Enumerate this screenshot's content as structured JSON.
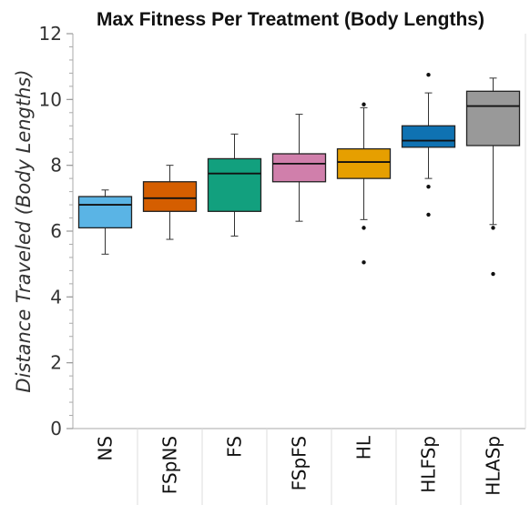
{
  "chart_data": {
    "type": "box",
    "title": "Max Fitness Per Treatment (Body Lengths)",
    "xlabel": "",
    "ylabel": "Distance Traveled (Body Lengths)",
    "ylim": [
      0,
      12
    ],
    "yticks": [
      0,
      2,
      4,
      6,
      8,
      10,
      12
    ],
    "grid": false,
    "categories": [
      "NS",
      "FSpNS",
      "FS",
      "FSpFS",
      "HL",
      "HLFSp",
      "HLASp"
    ],
    "boxes": [
      {
        "category": "NS",
        "color": "#5ab4e5",
        "whisker_low": 5.3,
        "q1": 6.1,
        "median": 6.8,
        "q3": 7.05,
        "whisker_high": 7.25,
        "outliers": []
      },
      {
        "category": "FSpNS",
        "color": "#d55e00",
        "whisker_low": 5.75,
        "q1": 6.6,
        "median": 7.0,
        "q3": 7.5,
        "whisker_high": 8.0,
        "outliers": []
      },
      {
        "category": "FS",
        "color": "#12a07e",
        "whisker_low": 5.85,
        "q1": 6.6,
        "median": 7.75,
        "q3": 8.2,
        "whisker_high": 8.95,
        "outliers": []
      },
      {
        "category": "FSpFS",
        "color": "#d07fab",
        "whisker_low": 6.3,
        "q1": 7.5,
        "median": 8.05,
        "q3": 8.35,
        "whisker_high": 9.55,
        "outliers": []
      },
      {
        "category": "HL",
        "color": "#e69f00",
        "whisker_low": 6.35,
        "q1": 7.6,
        "median": 8.1,
        "q3": 8.5,
        "whisker_high": 9.75,
        "outliers": [
          9.85,
          6.1,
          5.05
        ]
      },
      {
        "category": "HLFSp",
        "color": "#0f72b2",
        "whisker_low": 7.6,
        "q1": 8.55,
        "median": 8.75,
        "q3": 9.2,
        "whisker_high": 10.2,
        "outliers": [
          10.75,
          7.35,
          6.5
        ]
      },
      {
        "category": "HLASp",
        "color": "#999999",
        "whisker_low": 6.2,
        "q1": 8.6,
        "median": 9.8,
        "q3": 10.25,
        "whisker_high": 10.65,
        "outliers": [
          6.1,
          4.7
        ]
      }
    ]
  }
}
